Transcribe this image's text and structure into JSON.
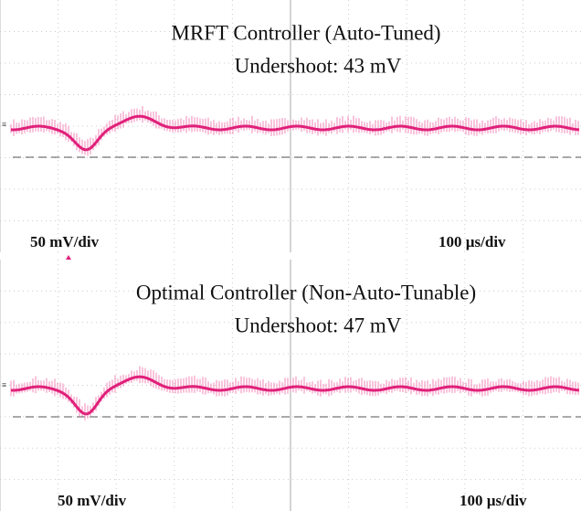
{
  "panels": [
    {
      "title": "MRFT Controller (Auto-Tuned)",
      "subtitle": "Undershoot: 43 mV",
      "vertical_scale": "50 mV/div",
      "horizontal_scale": "100 µs/div"
    },
    {
      "title": "Optimal Controller (Non-Auto-Tunable)",
      "subtitle": "Undershoot: 47 mV",
      "vertical_scale": "50 mV/div",
      "horizontal_scale": "100 µs/div"
    }
  ]
}
